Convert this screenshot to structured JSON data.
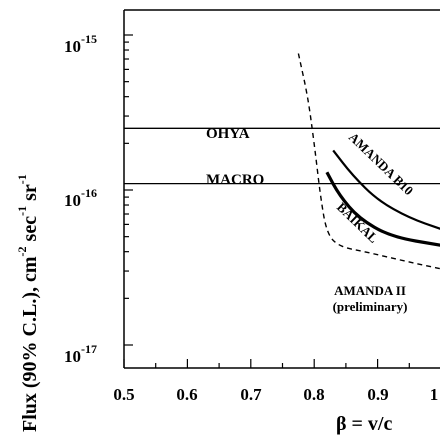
{
  "chart_data": {
    "type": "line",
    "xlabel": "β = v/c",
    "ylabel": {
      "main": "Flux (90% C.L.), cm",
      "exp1": "-2",
      "unit2": " sec",
      "exp2": "-1",
      "unit3": " sr",
      "exp3": "-1"
    },
    "xlim": [
      0.5,
      1.0
    ],
    "ylim": [
      1e-17,
      1.6e-15
    ],
    "yscale": "log",
    "x_ticks": [
      "0.5",
      "0.6",
      "0.7",
      "0.8",
      "0.9",
      "1"
    ],
    "y_ticks": [
      {
        "base": "10",
        "exp": "-15"
      },
      {
        "base": "10",
        "exp": "-16"
      },
      {
        "base": "10",
        "exp": "-17"
      }
    ],
    "series": [
      {
        "name": "OHYA",
        "style": "solid-thin",
        "x": [
          0.5,
          1.0
        ],
        "y": [
          2.5e-16,
          2.5e-16
        ]
      },
      {
        "name": "MACRO",
        "style": "solid-thin",
        "x": [
          0.5,
          1.0
        ],
        "y": [
          1.1e-16,
          1.1e-16
        ]
      },
      {
        "name": "AMANDA B10",
        "style": "solid-medium",
        "x": [
          0.83,
          0.86,
          0.9,
          0.95,
          1.0
        ],
        "y": [
          1.8e-16,
          1.25e-16,
          8.6e-17,
          6.6e-17,
          5.6e-17
        ]
      },
      {
        "name": "BAIKAL",
        "style": "solid-thick",
        "x": [
          0.82,
          0.84,
          0.87,
          0.92,
          1.0
        ],
        "y": [
          1.3e-16,
          9.2e-17,
          6.6e-17,
          5e-17,
          4.4e-17
        ]
      },
      {
        "name": "AMANDA II (preliminary)",
        "style": "dashed",
        "x": [
          0.775,
          0.79,
          0.8,
          0.81,
          0.82,
          0.84,
          0.88,
          0.94,
          1.0
        ],
        "y": [
          7.6e-16,
          4e-16,
          2e-16,
          9e-17,
          5.2e-17,
          4.3e-17,
          4e-17,
          3.5e-17,
          3.1e-17
        ]
      }
    ],
    "labels": {
      "ohya": "OHYA",
      "macro": "MACRO",
      "amanda_b10": "AMANDA B10",
      "baikal": "BAIKAL",
      "amanda2_line1": "AMANDA II",
      "amanda2_line2": "(preliminary)"
    },
    "grid": false,
    "legend": "none"
  }
}
